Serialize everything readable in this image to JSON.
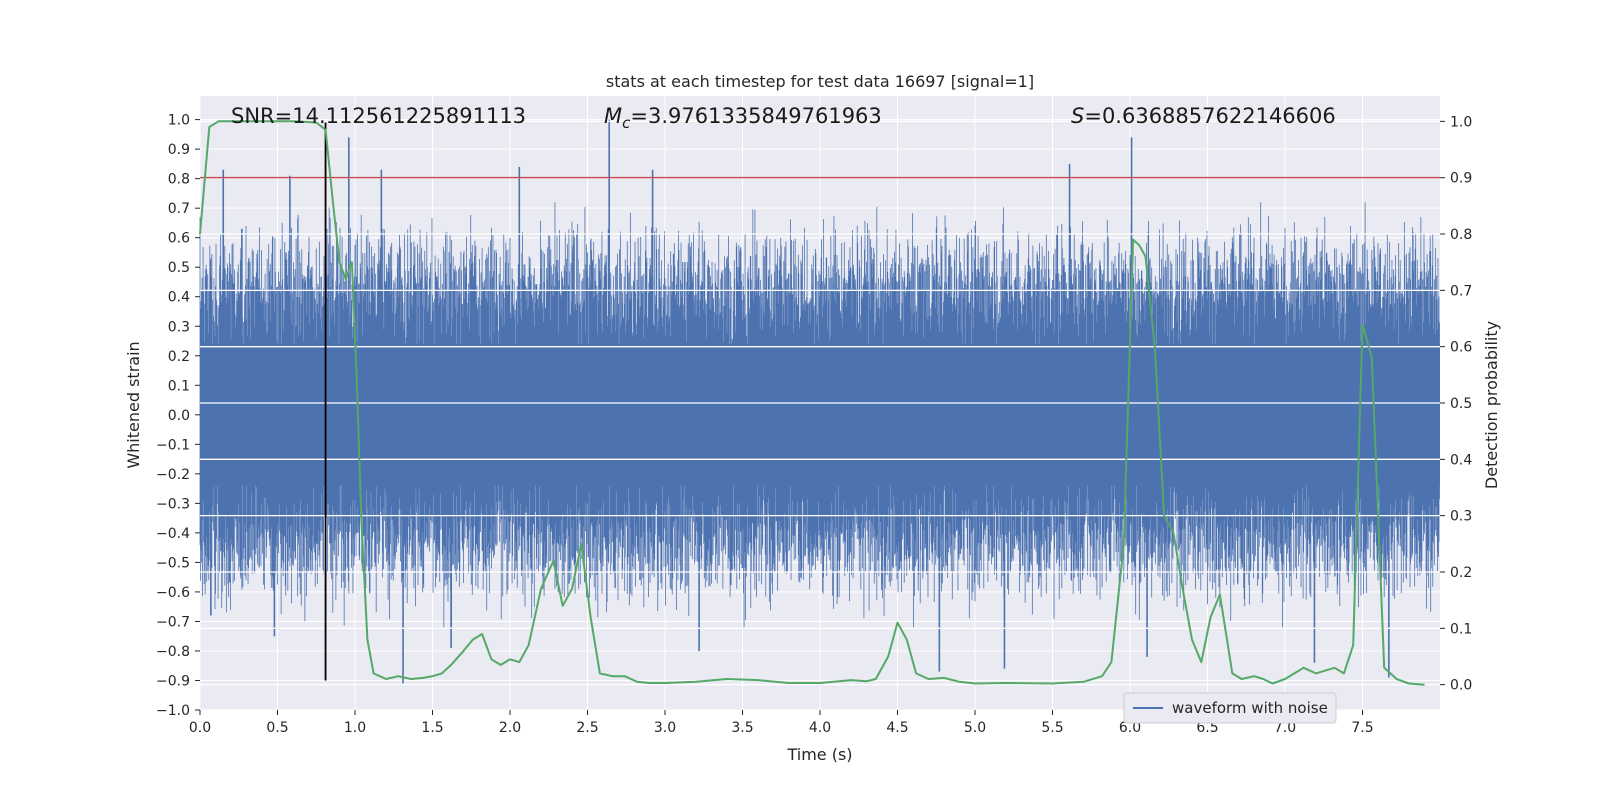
{
  "chart_data": {
    "type": "line",
    "title": "stats at each timestep for test data 16697 [signal=1]",
    "xlabel": "Time (s)",
    "ylabel": "Whitened strain",
    "y2label": "Detection probability",
    "xlim": [
      0,
      8
    ],
    "ylim": [
      -1.0,
      1.08
    ],
    "y2lim": [
      -0.045,
      1.045
    ],
    "x_ticks": [
      "0.0",
      "0.5",
      "1.0",
      "1.5",
      "2.0",
      "2.5",
      "3.0",
      "3.5",
      "4.0",
      "4.5",
      "5.0",
      "5.5",
      "6.0",
      "6.5",
      "7.0",
      "7.5"
    ],
    "y_ticks": [
      "-1.0",
      "-0.9",
      "-0.8",
      "-0.7",
      "-0.6",
      "-0.5",
      "-0.4",
      "-0.3",
      "-0.2",
      "-0.1",
      "0.0",
      "0.1",
      "0.2",
      "0.3",
      "0.4",
      "0.5",
      "0.6",
      "0.7",
      "0.8",
      "0.9",
      "1.0"
    ],
    "y2_ticks": [
      "0.0",
      "0.1",
      "0.2",
      "0.3",
      "0.4",
      "0.5",
      "0.6",
      "0.7",
      "0.8",
      "0.9",
      "1.0"
    ],
    "grid": true,
    "legend_position": "lower-right",
    "annotations": {
      "snr": "SNR=14.112561225891113",
      "mc_symbol": "M",
      "mc_sub": "c",
      "mc_value": "=3.9761335849761963",
      "s_symbol": "S",
      "s_value": "=0.6368857622146606"
    },
    "threshold": {
      "axis": "y2",
      "value": 0.9,
      "color": "#c44e52"
    },
    "marker_line": {
      "x": 0.81,
      "y_from": -0.9,
      "y_to": 0.99,
      "color": "#000000"
    },
    "series": [
      {
        "name": "waveform with noise",
        "axis": "y",
        "color": "#4c72b0",
        "kind": "noise",
        "duration_s": 8.0,
        "typical_envelope": 0.45,
        "spikes": [
          [
            0.15,
            0.83
          ],
          [
            0.27,
            0.63
          ],
          [
            0.58,
            0.81
          ],
          [
            0.96,
            0.94
          ],
          [
            1.17,
            0.83
          ],
          [
            2.06,
            0.84
          ],
          [
            2.64,
            1.0
          ],
          [
            2.92,
            0.83
          ],
          [
            5.61,
            0.85
          ],
          [
            6.01,
            0.94
          ],
          [
            0.07,
            -0.68
          ],
          [
            0.48,
            -0.75
          ],
          [
            1.31,
            -0.91
          ],
          [
            1.62,
            -0.79
          ],
          [
            3.22,
            -0.8
          ],
          [
            4.77,
            -0.87
          ],
          [
            5.19,
            -0.86
          ],
          [
            6.11,
            -0.82
          ],
          [
            7.19,
            -0.84
          ],
          [
            7.67,
            -0.89
          ]
        ]
      },
      {
        "name": "detection probability",
        "axis": "y2",
        "color": "#55a868",
        "x": [
          0.0,
          0.06,
          0.12,
          0.2,
          0.4,
          0.6,
          0.75,
          0.81,
          0.86,
          0.9,
          0.94,
          0.98,
          1.01,
          1.04,
          1.08,
          1.12,
          1.2,
          1.28,
          1.36,
          1.44,
          1.5,
          1.56,
          1.62,
          1.7,
          1.76,
          1.82,
          1.88,
          1.94,
          2.0,
          2.06,
          2.12,
          2.2,
          2.28,
          2.34,
          2.4,
          2.46,
          2.52,
          2.58,
          2.66,
          2.74,
          2.82,
          2.9,
          3.0,
          3.2,
          3.4,
          3.6,
          3.8,
          4.0,
          4.2,
          4.3,
          4.36,
          4.44,
          4.5,
          4.56,
          4.62,
          4.7,
          4.8,
          4.9,
          5.0,
          5.2,
          5.5,
          5.7,
          5.82,
          5.88,
          5.96,
          6.02,
          6.06,
          6.1,
          6.16,
          6.22,
          6.28,
          6.34,
          6.4,
          6.46,
          6.52,
          6.58,
          6.66,
          6.72,
          6.8,
          6.86,
          6.92,
          7.0,
          7.06,
          7.12,
          7.2,
          7.26,
          7.32,
          7.38,
          7.44,
          7.5,
          7.56,
          7.64,
          7.72,
          7.8,
          7.9
        ],
        "values": [
          0.8,
          0.99,
          1.0,
          1.0,
          1.0,
          1.0,
          0.998,
          0.985,
          0.85,
          0.75,
          0.72,
          0.75,
          0.55,
          0.3,
          0.08,
          0.02,
          0.01,
          0.015,
          0.01,
          0.012,
          0.015,
          0.02,
          0.035,
          0.06,
          0.08,
          0.09,
          0.045,
          0.035,
          0.045,
          0.04,
          0.07,
          0.17,
          0.22,
          0.14,
          0.17,
          0.25,
          0.12,
          0.02,
          0.015,
          0.015,
          0.005,
          0.003,
          0.003,
          0.005,
          0.01,
          0.008,
          0.003,
          0.003,
          0.008,
          0.006,
          0.01,
          0.05,
          0.11,
          0.08,
          0.02,
          0.01,
          0.012,
          0.005,
          0.002,
          0.003,
          0.002,
          0.005,
          0.015,
          0.04,
          0.25,
          0.79,
          0.78,
          0.76,
          0.6,
          0.3,
          0.27,
          0.17,
          0.08,
          0.04,
          0.12,
          0.16,
          0.02,
          0.01,
          0.015,
          0.01,
          0.002,
          0.01,
          0.02,
          0.03,
          0.02,
          0.025,
          0.03,
          0.02,
          0.07,
          0.64,
          0.58,
          0.03,
          0.01,
          0.002,
          0.0
        ]
      }
    ]
  }
}
